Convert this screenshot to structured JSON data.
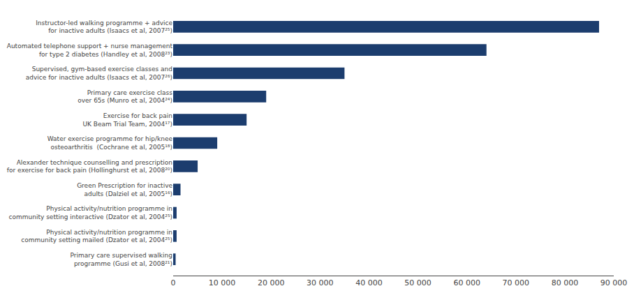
{
  "chart_data": {
    "type": "bar",
    "orientation": "horizontal",
    "categories": [
      "Primary care supervised walking\nprogramme (Gusi et al, 2008²¹)",
      "Physical activity/nutrition programme in\ncommunity setting mailed (Dzator et al, 2004²⁵)",
      "Physical activity/nutrition programme in\ncommunity setting interactive (Dzator et al, 2004²⁵)",
      "Green Prescription for inactive\nadults (Dalziel et al, 2005¹⁶)",
      "Alexander technique counselling and prescription\nfor exercise for back pain (Hollinghurst et al, 2008²⁰)",
      "Water exercise programme for hip/knee\nosteoarthritis  (Cochrane et al, 2005¹⁸)",
      "Exercise for back pain\nUK Beam Trial Team, 2004¹⁷)",
      "Primary care exercise class\nover 65s (Munro et al, 2004²⁴)",
      "Supervised, gym-based exercise classes and\nadvice for inactive adults (Isaacs et al, 2007²⁶)",
      "Automated telephone support + nurse management\nfor type 2 diabetes (Handley et al, 2008²³)",
      "Instructor-led walking programme + advice\nfor inactive adults (Isaacs et al, 2007²⁵)"
    ],
    "values": [
      500,
      700,
      700,
      1500,
      5000,
      9000,
      15000,
      19000,
      35000,
      64000,
      87000
    ],
    "color": "#1c3d6e",
    "xlim": [
      0,
      90000
    ],
    "xticks": [
      0,
      {
        "value": 10000,
        "label": "10 000"
      },
      {
        "value": 20000,
        "label": "20 000"
      },
      {
        "value": 30000,
        "label": "30 000"
      },
      {
        "value": 40000,
        "label": "40 000"
      },
      {
        "value": 50000,
        "label": "50 000"
      },
      {
        "value": 60000,
        "label": "60 000"
      },
      {
        "value": 70000,
        "label": "70 000"
      },
      {
        "value": 80000,
        "label": "80 000"
      },
      {
        "value": 90000,
        "label": "90 000"
      }
    ],
    "grid": false
  }
}
